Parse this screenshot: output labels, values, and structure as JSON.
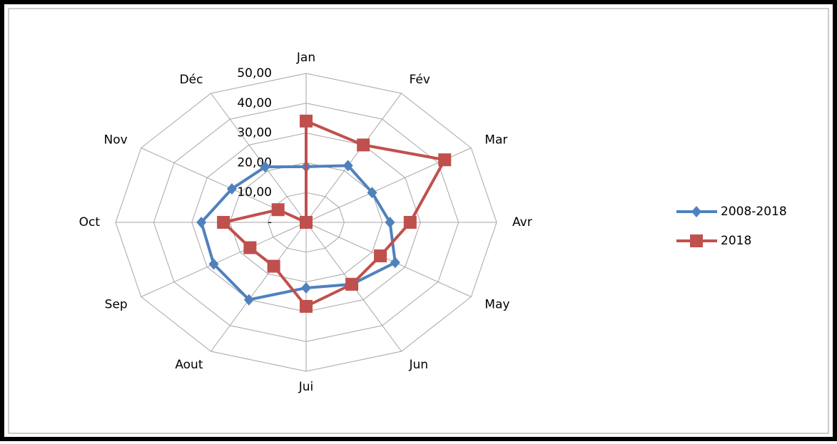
{
  "chart_data": {
    "type": "radar",
    "categories": [
      "Jan",
      "Fév",
      "Mar",
      "Avr",
      "May",
      "Jun",
      "Jui",
      "Aout",
      "Sep",
      "Oct",
      "Nov",
      "Déc"
    ],
    "series": [
      {
        "name": "2008-2018",
        "color": "#4f81bd",
        "marker": "diamond",
        "values": [
          18.7,
          22,
          20,
          22,
          27,
          24,
          22,
          30,
          28,
          27.5,
          22.5,
          21.5
        ]
      },
      {
        "name": "2018",
        "color": "#c0504d",
        "marker": "square",
        "values": [
          34,
          30,
          42,
          27.3,
          22.5,
          24,
          28.2,
          17,
          17,
          21.7,
          8.5,
          0
        ]
      }
    ],
    "ylim": [
      0,
      50
    ],
    "yticks": [
      {
        "value": 0,
        "label": "-"
      },
      {
        "value": 10,
        "label": "10,00"
      },
      {
        "value": 20,
        "label": "20,00"
      },
      {
        "value": 30,
        "label": "30,00"
      },
      {
        "value": 40,
        "label": "40,00"
      },
      {
        "value": 50,
        "label": "50,00"
      }
    ],
    "grid": true,
    "legend": "right"
  }
}
